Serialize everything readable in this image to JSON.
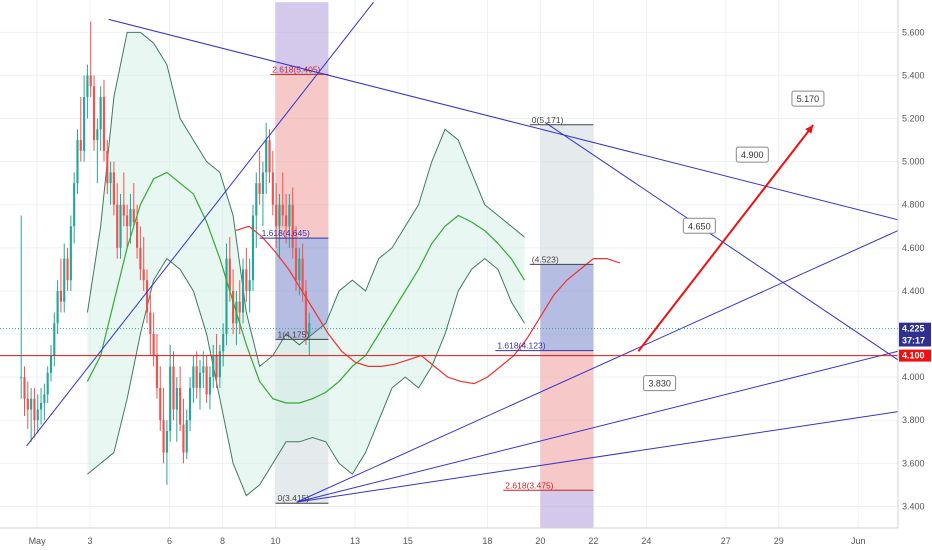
{
  "chart_data": {
    "type": "candlestick",
    "title": "",
    "xlabel": "",
    "ylabel": "",
    "ylim": [
      3.3,
      5.75
    ],
    "y_ticks": [
      "3.400",
      "3.600",
      "3.800",
      "4.000",
      "4.200",
      "4.400",
      "4.600",
      "4.800",
      "5.000",
      "5.200",
      "5.400",
      "5.600"
    ],
    "x_ticks": [
      {
        "label": "May",
        "x": 0
      },
      {
        "label": "3",
        "x": 2
      },
      {
        "label": "6",
        "x": 5
      },
      {
        "label": "8",
        "x": 7
      },
      {
        "label": "10",
        "x": 9
      },
      {
        "label": "13",
        "x": 12
      },
      {
        "label": "15",
        "x": 14
      },
      {
        "label": "18",
        "x": 17
      },
      {
        "label": "20",
        "x": 19
      },
      {
        "label": "22",
        "x": 21
      },
      {
        "label": "24",
        "x": 23
      },
      {
        "label": "27",
        "x": 26
      },
      {
        "label": "29",
        "x": 28
      },
      {
        "label": "Jun",
        "x": 31
      }
    ],
    "x_range": [
      -1.4,
      32.5
    ],
    "grid": true,
    "price_tags": [
      {
        "label": "4.225",
        "value": 4.225,
        "color": "#2f2f8f"
      },
      {
        "label": "37:17",
        "value": 4.17,
        "color": "#2f2f8f"
      },
      {
        "label": "4.100",
        "value": 4.1,
        "color": "#ee1111"
      }
    ],
    "current_price": 4.225,
    "support_line": 4.1,
    "candles_start_x": -0.6,
    "candles_step": 0.125,
    "candles": [
      [
        4.0,
        4.75,
        3.9,
        4.0
      ],
      [
        4.0,
        4.05,
        3.82,
        3.9
      ],
      [
        3.9,
        3.98,
        3.76,
        3.85
      ],
      [
        3.85,
        3.95,
        3.7,
        3.9
      ],
      [
        3.9,
        3.95,
        3.72,
        3.8
      ],
      [
        3.8,
        3.92,
        3.74,
        3.85
      ],
      [
        3.85,
        3.95,
        3.78,
        3.88
      ],
      [
        3.88,
        3.97,
        3.8,
        3.92
      ],
      [
        3.92,
        4.05,
        3.88,
        4.02
      ],
      [
        4.02,
        4.15,
        3.98,
        4.1
      ],
      [
        4.1,
        4.3,
        4.05,
        4.25
      ],
      [
        4.25,
        4.45,
        4.2,
        4.4
      ],
      [
        4.4,
        4.55,
        4.3,
        4.35
      ],
      [
        4.35,
        4.62,
        4.3,
        4.55
      ],
      [
        4.55,
        4.6,
        4.4,
        4.45
      ],
      [
        4.45,
        4.75,
        4.4,
        4.7
      ],
      [
        4.7,
        4.95,
        4.62,
        4.9
      ],
      [
        4.9,
        5.15,
        4.85,
        5.1
      ],
      [
        5.1,
        5.3,
        5.0,
        5.05
      ],
      [
        5.05,
        5.4,
        5.0,
        5.3
      ],
      [
        5.3,
        5.45,
        5.2,
        5.4
      ],
      [
        5.4,
        5.65,
        5.3,
        5.35
      ],
      [
        5.35,
        5.4,
        5.05,
        5.1
      ],
      [
        5.1,
        5.2,
        4.9,
        5.15
      ],
      [
        5.15,
        5.35,
        5.05,
        5.3
      ],
      [
        5.3,
        5.38,
        5.0,
        5.05
      ],
      [
        5.05,
        5.1,
        4.85,
        4.9
      ],
      [
        4.9,
        5.0,
        4.8,
        4.95
      ],
      [
        4.95,
        5.0,
        4.75,
        4.8
      ],
      [
        4.8,
        4.9,
        4.55,
        4.6
      ],
      [
        4.6,
        4.85,
        4.55,
        4.8
      ],
      [
        4.8,
        4.95,
        4.7,
        4.75
      ],
      [
        4.75,
        4.8,
        4.6,
        4.7
      ],
      [
        4.7,
        4.85,
        4.62,
        4.78
      ],
      [
        4.78,
        4.9,
        4.7,
        4.72
      ],
      [
        4.72,
        4.8,
        4.55,
        4.6
      ],
      [
        4.6,
        4.7,
        4.45,
        4.5
      ],
      [
        4.5,
        4.65,
        4.4,
        4.45
      ],
      [
        4.45,
        4.5,
        4.25,
        4.3
      ],
      [
        4.3,
        4.4,
        4.1,
        4.2
      ],
      [
        4.2,
        4.3,
        4.05,
        4.1
      ],
      [
        4.1,
        4.2,
        3.9,
        3.95
      ],
      [
        3.95,
        4.05,
        3.75,
        3.8
      ],
      [
        3.8,
        3.95,
        3.6,
        3.65
      ],
      [
        3.65,
        3.8,
        3.5,
        3.75
      ],
      [
        3.75,
        4.15,
        3.7,
        4.05
      ],
      [
        4.05,
        4.12,
        3.8,
        3.85
      ],
      [
        3.85,
        4.0,
        3.7,
        3.95
      ],
      [
        3.95,
        4.05,
        3.75,
        3.78
      ],
      [
        3.78,
        3.9,
        3.6,
        3.65
      ],
      [
        3.65,
        3.85,
        3.62,
        3.8
      ],
      [
        3.8,
        4.0,
        3.75,
        3.95
      ],
      [
        3.95,
        4.1,
        3.88,
        4.05
      ],
      [
        4.05,
        4.12,
        3.9,
        3.95
      ],
      [
        3.95,
        4.08,
        3.85,
        4.02
      ],
      [
        4.02,
        4.12,
        3.95,
        4.05
      ],
      [
        4.05,
        4.1,
        3.88,
        3.92
      ],
      [
        3.92,
        4.05,
        3.85,
        4.0
      ],
      [
        4.0,
        4.15,
        3.95,
        4.1
      ],
      [
        4.1,
        4.2,
        3.95,
        4.0
      ],
      [
        4.0,
        4.15,
        3.95,
        4.12
      ],
      [
        4.12,
        4.25,
        4.05,
        4.2
      ],
      [
        4.2,
        4.62,
        4.15,
        4.55
      ],
      [
        4.55,
        4.65,
        4.35,
        4.4
      ],
      [
        4.4,
        4.5,
        4.2,
        4.25
      ],
      [
        4.25,
        4.4,
        4.15,
        4.35
      ],
      [
        4.35,
        4.45,
        4.2,
        4.3
      ],
      [
        4.3,
        4.55,
        4.25,
        4.5
      ],
      [
        4.5,
        4.6,
        4.35,
        4.4
      ],
      [
        4.4,
        4.55,
        4.3,
        4.45
      ],
      [
        4.45,
        4.8,
        4.4,
        4.75
      ],
      [
        4.75,
        4.95,
        4.6,
        4.9
      ],
      [
        4.9,
        5.05,
        4.8,
        4.85
      ],
      [
        4.85,
        5.0,
        4.7,
        4.95
      ],
      [
        4.95,
        5.18,
        4.85,
        5.1
      ],
      [
        5.1,
        5.15,
        4.9,
        4.95
      ],
      [
        4.95,
        5.05,
        4.75,
        4.8
      ],
      [
        4.8,
        4.9,
        4.6,
        4.7
      ],
      [
        4.7,
        4.85,
        4.55,
        4.8
      ],
      [
        4.8,
        4.95,
        4.7,
        4.75
      ],
      [
        4.75,
        4.85,
        4.62,
        4.7
      ],
      [
        4.7,
        4.85,
        4.6,
        4.8
      ],
      [
        4.8,
        4.88,
        4.55,
        4.6
      ],
      [
        4.6,
        4.7,
        4.4,
        4.45
      ],
      [
        4.45,
        4.6,
        4.38,
        4.55
      ],
      [
        4.55,
        4.62,
        4.35,
        4.4
      ],
      [
        4.4,
        4.45,
        4.15,
        4.2
      ],
      [
        4.2,
        4.3,
        4.1,
        4.25
      ]
    ],
    "bollinger_start_x": 1.9,
    "bollinger_step": 0.5,
    "bollinger_upper": [
      4.3,
      4.7,
      5.3,
      5.6,
      5.6,
      5.55,
      5.45,
      5.2,
      5.1,
      5.0,
      4.95,
      4.75,
      4.3,
      4.05,
      4.1,
      4.2,
      4.15,
      4.2,
      4.25,
      4.4,
      4.45,
      4.4,
      4.55,
      4.6,
      4.7,
      4.8,
      5.0,
      5.15,
      5.1,
      4.95,
      4.8,
      4.75,
      4.7,
      4.65
    ],
    "bollinger_mid": [
      3.98,
      4.1,
      4.35,
      4.6,
      4.8,
      4.92,
      4.95,
      4.9,
      4.85,
      4.72,
      4.55,
      4.35,
      4.15,
      3.98,
      3.9,
      3.88,
      3.88,
      3.9,
      3.93,
      3.98,
      4.05,
      4.1,
      4.2,
      4.3,
      4.4,
      4.5,
      4.62,
      4.7,
      4.75,
      4.72,
      4.68,
      4.62,
      4.55,
      4.45
    ],
    "bollinger_lower": [
      3.55,
      3.6,
      3.65,
      3.9,
      4.2,
      4.45,
      4.55,
      4.5,
      4.4,
      4.2,
      3.9,
      3.6,
      3.45,
      3.5,
      3.6,
      3.7,
      3.7,
      3.72,
      3.7,
      3.6,
      3.55,
      3.65,
      3.8,
      3.95,
      4.0,
      3.95,
      4.05,
      4.2,
      4.4,
      4.5,
      4.55,
      4.5,
      4.35,
      4.25
    ],
    "ma_red_start_x": 7.5,
    "ma_red_step": 0.5,
    "ma_red": [
      4.68,
      4.7,
      4.65,
      4.58,
      4.5,
      4.4,
      4.3,
      4.2,
      4.12,
      4.07,
      4.05,
      4.05,
      4.06,
      4.08,
      4.1,
      4.05,
      4.0,
      3.98,
      3.97,
      4.0,
      4.05,
      4.1,
      4.18,
      4.28,
      4.38,
      4.45,
      4.5,
      4.55,
      4.55,
      4.53
    ],
    "trendlines": [
      {
        "points": [
          [
            2.7,
            5.66
          ],
          [
            32.5,
            4.73
          ]
        ],
        "color": "#3333cc"
      },
      {
        "points": [
          [
            -0.4,
            3.68
          ],
          [
            12.7,
            5.74
          ]
        ],
        "color": "#3333cc"
      },
      {
        "points": [
          [
            19.2,
            5.18
          ],
          [
            32.5,
            4.08
          ]
        ],
        "color": "#3333cc"
      },
      {
        "points": [
          [
            9.8,
            3.42
          ],
          [
            32.5,
            4.68
          ]
        ],
        "color": "#3333cc"
      },
      {
        "points": [
          [
            9.8,
            3.42
          ],
          [
            32.5,
            4.12
          ]
        ],
        "color": "#3333cc"
      },
      {
        "points": [
          [
            9.8,
            3.42
          ],
          [
            32.5,
            3.84
          ]
        ],
        "color": "#3333cc"
      }
    ],
    "projection": {
      "points": [
        [
          22.7,
          4.12
        ],
        [
          29.3,
          5.17
        ]
      ],
      "color": "#ee1111",
      "targets": [
        {
          "label": "4.650",
          "x": 25.0,
          "y": 4.7
        },
        {
          "label": "4.900",
          "x": 27.0,
          "y": 5.03
        },
        {
          "label": "5.170",
          "x": 29.1,
          "y": 5.29
        },
        {
          "label": "3.830",
          "x": 23.5,
          "y": 3.97
        }
      ]
    },
    "fib_levels": [
      {
        "label": "2.618(5.405)",
        "value": 5.405,
        "x1": 8.8,
        "x2": 11.0,
        "color": "#cc2222"
      },
      {
        "label": "1.618(4.645)",
        "value": 4.645,
        "x1": 8.4,
        "x2": 11.0,
        "color": "#3333aa"
      },
      {
        "label": "1(4.175)",
        "value": 4.175,
        "x1": 9.0,
        "x2": 11.0,
        "color": "#444444"
      },
      {
        "label": "0(3.415)",
        "value": 3.415,
        "x1": 9.0,
        "x2": 11.0,
        "color": "#444444"
      },
      {
        "label": "0(5.171)",
        "value": 5.171,
        "x1": 18.6,
        "x2": 21.0,
        "color": "#444444"
      },
      {
        "label": "(4.523)",
        "value": 4.523,
        "x1": 18.6,
        "x2": 21.0,
        "color": "#444444"
      },
      {
        "label": "1.618(4.123)",
        "value": 4.123,
        "x1": 17.3,
        "x2": 21.0,
        "color": "#3333aa"
      },
      {
        "label": "2.618(3.475)",
        "value": 3.475,
        "x1": 17.6,
        "x2": 21.0,
        "color": "#cc2222"
      }
    ],
    "fib_zones": [
      {
        "x1": 9.0,
        "x2": 11.0,
        "y1": 5.74,
        "y2": 5.405,
        "color": "#b39ddb"
      },
      {
        "x1": 9.0,
        "x2": 11.0,
        "y1": 5.405,
        "y2": 4.645,
        "color": "#ef9a9a"
      },
      {
        "x1": 9.0,
        "x2": 11.0,
        "y1": 4.645,
        "y2": 4.175,
        "color": "#7986cb"
      },
      {
        "x1": 9.0,
        "x2": 11.0,
        "y1": 4.175,
        "y2": 3.415,
        "color": "#cfd8dc"
      },
      {
        "x1": 19.0,
        "x2": 21.0,
        "y1": 5.171,
        "y2": 4.523,
        "color": "#cfd8dc"
      },
      {
        "x1": 19.0,
        "x2": 21.0,
        "y1": 4.523,
        "y2": 4.123,
        "color": "#7986cb"
      },
      {
        "x1": 19.0,
        "x2": 21.0,
        "y1": 4.123,
        "y2": 3.475,
        "color": "#ef9a9a"
      },
      {
        "x1": 19.0,
        "x2": 21.0,
        "y1": 3.475,
        "y2": 3.3,
        "color": "#b39ddb"
      }
    ],
    "colors": {
      "up": "#26a69a",
      "down": "#ef5350",
      "bollinger": "#3e7b5e",
      "ma_green": "#33aa33",
      "ma_red": "#ee3333",
      "trend": "#3333cc"
    }
  }
}
